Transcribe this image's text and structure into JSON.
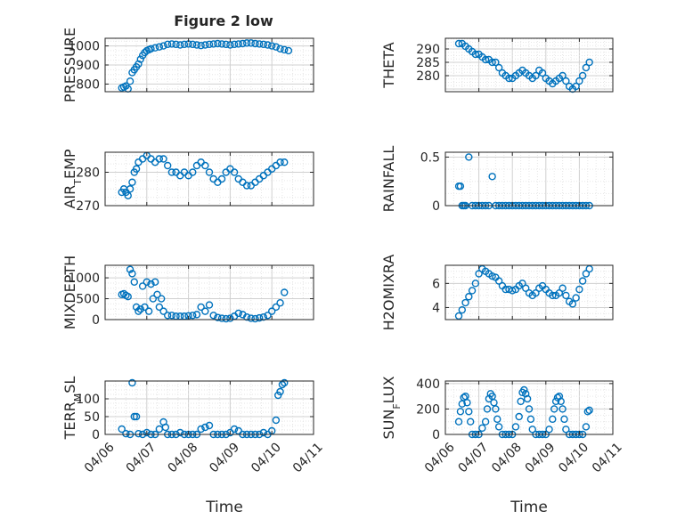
{
  "figure": {
    "title": "Figure 2 low",
    "xlabel": "Time"
  },
  "chart_data": [
    {
      "type": "scatter",
      "ylabel": "PRESSURE",
      "ylim": [
        760,
        1040
      ],
      "yticks": [
        800,
        900,
        1000
      ],
      "xlim": [
        "04/06",
        "04/11"
      ],
      "grid": true,
      "marker": "open-circle",
      "color": "#0072BD",
      "x": [
        0.4,
        0.45,
        0.5,
        0.55,
        0.6,
        0.65,
        0.7,
        0.75,
        0.8,
        0.85,
        0.9,
        0.95,
        1.0,
        1.05,
        1.1,
        1.2,
        1.3,
        1.4,
        1.5,
        1.6,
        1.7,
        1.8,
        1.9,
        2.0,
        2.1,
        2.2,
        2.3,
        2.4,
        2.5,
        2.6,
        2.7,
        2.8,
        2.9,
        3.0,
        3.1,
        3.2,
        3.3,
        3.4,
        3.5,
        3.6,
        3.7,
        3.8,
        3.9,
        4.0,
        4.1,
        4.2,
        4.3,
        4.4
      ],
      "values": [
        780,
        785,
        790,
        775,
        815,
        860,
        875,
        890,
        905,
        930,
        950,
        965,
        975,
        980,
        985,
        990,
        995,
        1000,
        1008,
        1010,
        1008,
        1005,
        1008,
        1010,
        1008,
        1005,
        1002,
        1005,
        1008,
        1010,
        1012,
        1010,
        1008,
        1005,
        1008,
        1010,
        1012,
        1015,
        1015,
        1012,
        1010,
        1008,
        1005,
        1000,
        995,
        985,
        980,
        975
      ]
    },
    {
      "type": "scatter",
      "ylabel": "THETA",
      "ylim": [
        274,
        294
      ],
      "yticks": [
        280,
        285,
        290
      ],
      "xlim": [
        "04/06",
        "04/11"
      ],
      "grid": true,
      "marker": "open-circle",
      "color": "#0072BD",
      "x": [
        0.4,
        0.5,
        0.6,
        0.7,
        0.8,
        0.9,
        1.0,
        1.1,
        1.2,
        1.3,
        1.4,
        1.5,
        1.6,
        1.7,
        1.8,
        1.9,
        2.0,
        2.1,
        2.2,
        2.3,
        2.4,
        2.5,
        2.6,
        2.7,
        2.8,
        2.9,
        3.0,
        3.1,
        3.2,
        3.3,
        3.4,
        3.5,
        3.6,
        3.7,
        3.8,
        3.9,
        4.0,
        4.1,
        4.2,
        4.3
      ],
      "values": [
        292,
        292,
        291,
        290,
        289,
        288,
        288,
        287,
        286,
        286,
        285,
        285,
        283,
        281,
        280,
        279,
        279,
        280,
        281,
        282,
        281,
        280,
        279,
        280,
        282,
        281,
        279,
        278,
        277,
        278,
        279,
        280,
        278,
        276,
        275,
        276,
        278,
        280,
        283,
        285
      ]
    },
    {
      "type": "scatter",
      "ylabel": "AIR_TEMP",
      "ylim": [
        270,
        286
      ],
      "yticks": [
        270,
        280
      ],
      "xlim": [
        "04/06",
        "04/11"
      ],
      "grid": true,
      "marker": "open-circle",
      "color": "#0072BD",
      "x": [
        0.4,
        0.45,
        0.5,
        0.55,
        0.6,
        0.65,
        0.7,
        0.75,
        0.8,
        0.9,
        1.0,
        1.1,
        1.2,
        1.3,
        1.4,
        1.5,
        1.6,
        1.7,
        1.8,
        1.9,
        2.0,
        2.1,
        2.2,
        2.3,
        2.4,
        2.5,
        2.6,
        2.7,
        2.8,
        2.9,
        3.0,
        3.1,
        3.2,
        3.3,
        3.4,
        3.5,
        3.6,
        3.7,
        3.8,
        3.9,
        4.0,
        4.1,
        4.2,
        4.3
      ],
      "values": [
        274,
        275,
        274,
        273,
        275,
        277,
        280,
        281,
        283,
        284,
        285,
        284,
        283,
        284,
        284,
        282,
        280,
        280,
        279,
        280,
        279,
        280,
        282,
        283,
        282,
        280,
        278,
        277,
        278,
        280,
        281,
        280,
        278,
        277,
        276,
        276,
        277,
        278,
        279,
        280,
        281,
        282,
        283,
        283
      ]
    },
    {
      "type": "scatter",
      "ylabel": "RAINFALL",
      "ylim": [
        0,
        0.55
      ],
      "yticks": [
        0,
        0.5
      ],
      "xlim": [
        "04/06",
        "04/11"
      ],
      "grid": true,
      "marker": "open-circle",
      "color": "#0072BD",
      "x": [
        0.4,
        0.45,
        0.5,
        0.55,
        0.6,
        0.7,
        0.8,
        0.9,
        1.0,
        1.1,
        1.2,
        1.3,
        1.4,
        1.5,
        1.6,
        1.7,
        1.8,
        1.9,
        2.0,
        2.1,
        2.2,
        2.3,
        2.4,
        2.5,
        2.6,
        2.7,
        2.8,
        2.9,
        3.0,
        3.1,
        3.2,
        3.3,
        3.4,
        3.5,
        3.6,
        3.7,
        3.8,
        3.9,
        4.0,
        4.1,
        4.2,
        4.3
      ],
      "values": [
        0.2,
        0.2,
        0,
        0,
        0,
        0.5,
        0,
        0,
        0,
        0,
        0,
        0,
        0.3,
        0,
        0,
        0,
        0,
        0,
        0,
        0,
        0,
        0,
        0,
        0,
        0,
        0,
        0,
        0,
        0,
        0,
        0,
        0,
        0,
        0,
        0,
        0,
        0,
        0,
        0,
        0,
        0,
        0
      ]
    },
    {
      "type": "scatter",
      "ylabel": "MIXDEPTH",
      "ylim": [
        0,
        1300
      ],
      "yticks": [
        0,
        500,
        1000
      ],
      "xlim": [
        "04/06",
        "04/11"
      ],
      "grid": true,
      "marker": "open-circle",
      "color": "#0072BD",
      "x": [
        0.4,
        0.45,
        0.5,
        0.55,
        0.6,
        0.65,
        0.7,
        0.75,
        0.8,
        0.85,
        0.9,
        0.95,
        1.0,
        1.05,
        1.1,
        1.15,
        1.2,
        1.25,
        1.3,
        1.35,
        1.4,
        1.5,
        1.6,
        1.7,
        1.8,
        1.9,
        2.0,
        2.1,
        2.2,
        2.3,
        2.4,
        2.5,
        2.6,
        2.7,
        2.8,
        2.9,
        3.0,
        3.1,
        3.2,
        3.3,
        3.4,
        3.5,
        3.6,
        3.7,
        3.8,
        3.9,
        4.0,
        4.1,
        4.2,
        4.3
      ],
      "values": [
        600,
        620,
        580,
        550,
        1200,
        1100,
        900,
        300,
        200,
        250,
        800,
        300,
        900,
        200,
        850,
        500,
        900,
        600,
        300,
        500,
        200,
        100,
        100,
        80,
        80,
        80,
        90,
        100,
        120,
        300,
        200,
        350,
        100,
        50,
        30,
        20,
        30,
        80,
        150,
        120,
        60,
        30,
        20,
        40,
        60,
        100,
        200,
        300,
        400,
        650
      ]
    },
    {
      "type": "scatter",
      "ylabel": "H2OMIXRA",
      "ylim": [
        3,
        7.5
      ],
      "yticks": [
        4,
        6
      ],
      "xlim": [
        "04/06",
        "04/11"
      ],
      "grid": true,
      "marker": "open-circle",
      "color": "#0072BD",
      "x": [
        0.4,
        0.5,
        0.6,
        0.7,
        0.8,
        0.9,
        1.0,
        1.1,
        1.2,
        1.3,
        1.4,
        1.5,
        1.6,
        1.7,
        1.8,
        1.9,
        2.0,
        2.1,
        2.2,
        2.3,
        2.4,
        2.5,
        2.6,
        2.7,
        2.8,
        2.9,
        3.0,
        3.1,
        3.2,
        3.3,
        3.4,
        3.5,
        3.6,
        3.7,
        3.8,
        3.9,
        4.0,
        4.1,
        4.2,
        4.3
      ],
      "values": [
        3.3,
        3.8,
        4.4,
        4.9,
        5.4,
        6.0,
        6.8,
        7.2,
        7.0,
        6.8,
        6.6,
        6.5,
        6.2,
        5.8,
        5.5,
        5.5,
        5.4,
        5.5,
        5.8,
        6.0,
        5.6,
        5.2,
        5.0,
        5.2,
        5.6,
        5.8,
        5.5,
        5.2,
        5.0,
        5.0,
        5.2,
        5.6,
        5.0,
        4.5,
        4.3,
        4.8,
        5.5,
        6.2,
        6.8,
        7.2
      ]
    },
    {
      "type": "scatter",
      "ylabel": "TERR_MSL",
      "ylim": [
        0,
        150
      ],
      "yticks": [
        0,
        50,
        100
      ],
      "xlim": [
        "04/06",
        "04/11"
      ],
      "grid": true,
      "marker": "open-circle",
      "color": "#0072BD",
      "x": [
        0.4,
        0.5,
        0.6,
        0.65,
        0.7,
        0.75,
        0.8,
        0.9,
        1.0,
        1.1,
        1.2,
        1.3,
        1.4,
        1.45,
        1.5,
        1.6,
        1.7,
        1.8,
        1.9,
        2.0,
        2.1,
        2.2,
        2.3,
        2.4,
        2.5,
        2.6,
        2.7,
        2.8,
        2.9,
        3.0,
        3.1,
        3.2,
        3.3,
        3.4,
        3.5,
        3.6,
        3.7,
        3.8,
        3.9,
        4.0,
        4.1,
        4.15,
        4.2,
        4.25,
        4.3
      ],
      "values": [
        15,
        2,
        0,
        145,
        50,
        50,
        2,
        0,
        5,
        0,
        0,
        15,
        35,
        20,
        0,
        0,
        0,
        5,
        0,
        0,
        0,
        0,
        15,
        20,
        25,
        0,
        0,
        0,
        0,
        5,
        15,
        10,
        0,
        0,
        0,
        0,
        0,
        5,
        0,
        10,
        40,
        110,
        120,
        140,
        145
      ]
    },
    {
      "type": "scatter",
      "ylabel": "SUN_FLUX",
      "ylim": [
        0,
        420
      ],
      "yticks": [
        0,
        200,
        400
      ],
      "xlim": [
        "04/06",
        "04/11"
      ],
      "grid": true,
      "marker": "open-circle",
      "color": "#0072BD",
      "x": [
        0.4,
        0.45,
        0.5,
        0.55,
        0.6,
        0.65,
        0.7,
        0.75,
        0.8,
        0.9,
        1.0,
        1.1,
        1.2,
        1.25,
        1.3,
        1.35,
        1.4,
        1.45,
        1.5,
        1.55,
        1.6,
        1.7,
        1.8,
        1.9,
        2.0,
        2.1,
        2.2,
        2.25,
        2.3,
        2.35,
        2.4,
        2.45,
        2.5,
        2.55,
        2.6,
        2.7,
        2.8,
        2.9,
        3.0,
        3.1,
        3.2,
        3.25,
        3.3,
        3.35,
        3.4,
        3.45,
        3.5,
        3.55,
        3.6,
        3.7,
        3.8,
        3.9,
        4.0,
        4.1,
        4.2,
        4.25,
        4.3
      ],
      "values": [
        100,
        180,
        240,
        290,
        300,
        250,
        180,
        100,
        0,
        0,
        0,
        50,
        100,
        200,
        280,
        320,
        300,
        250,
        200,
        120,
        60,
        0,
        0,
        0,
        0,
        60,
        140,
        260,
        330,
        350,
        320,
        280,
        200,
        120,
        40,
        0,
        0,
        0,
        0,
        40,
        120,
        200,
        260,
        290,
        300,
        260,
        200,
        120,
        40,
        0,
        0,
        0,
        0,
        0,
        60,
        180,
        190
      ]
    }
  ],
  "xticks": [
    "04/06",
    "04/07",
    "04/08",
    "04/09",
    "04/10",
    "04/11"
  ]
}
